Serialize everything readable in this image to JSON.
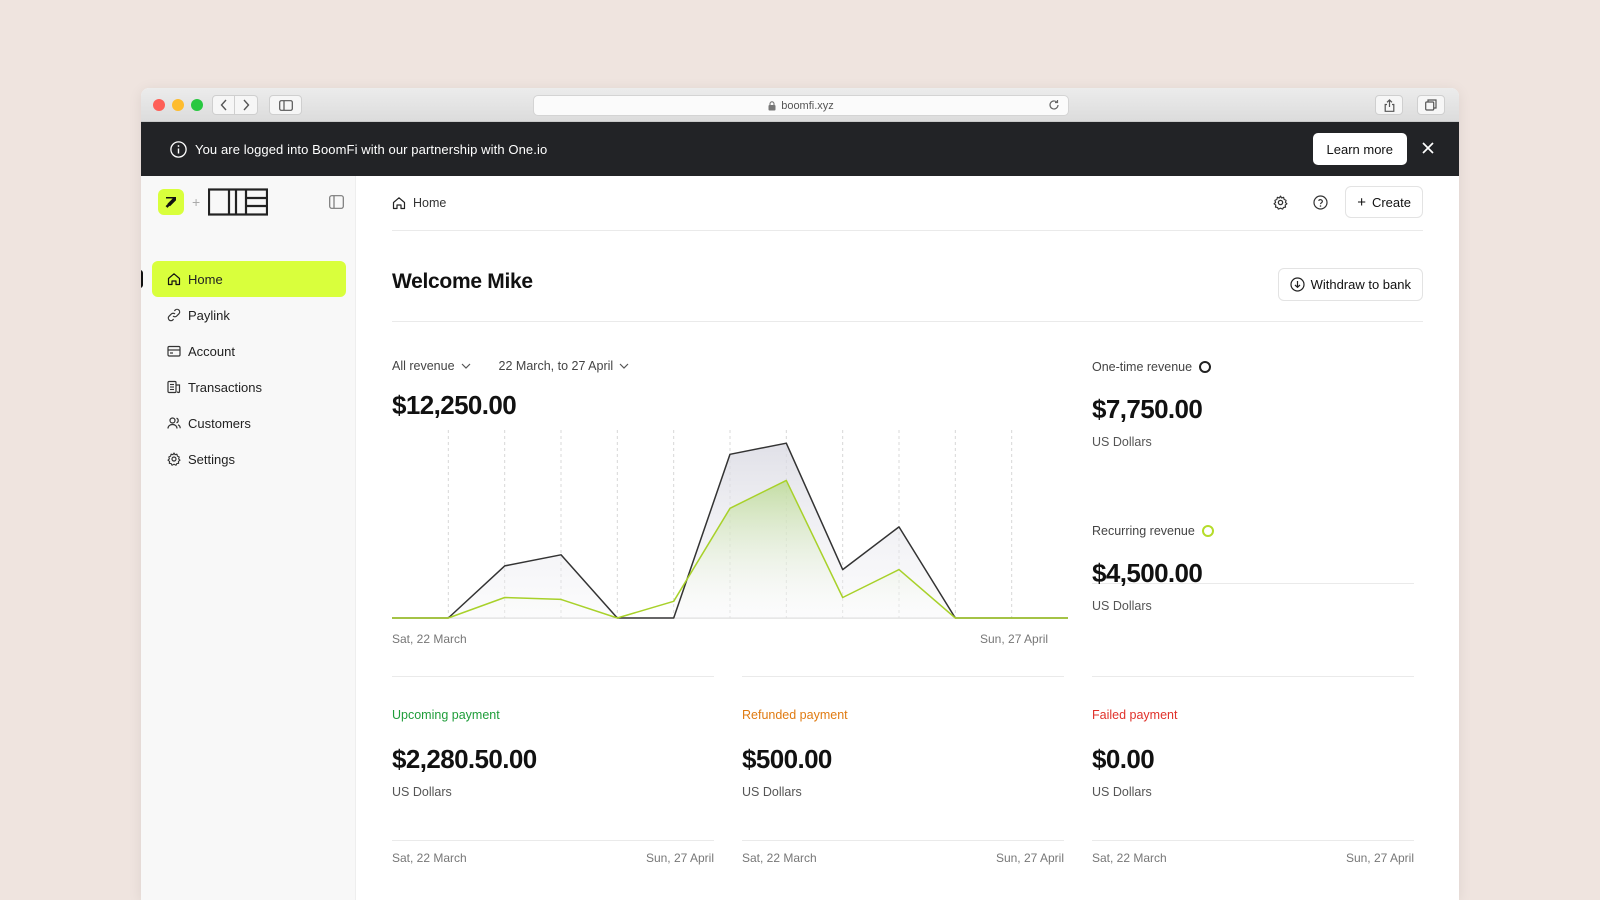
{
  "browser": {
    "url": "boomfi.xyz"
  },
  "banner": {
    "text": "You are logged into BoomFi with our partnership with One.io",
    "learn_more": "Learn more"
  },
  "sidebar": {
    "items": [
      {
        "label": "Home",
        "icon": "home-icon"
      },
      {
        "label": "Paylink",
        "icon": "link-icon"
      },
      {
        "label": "Account",
        "icon": "wallet-icon"
      },
      {
        "label": "Transactions",
        "icon": "transactions-icon"
      },
      {
        "label": "Customers",
        "icon": "users-icon"
      },
      {
        "label": "Settings",
        "icon": "gear-icon"
      }
    ]
  },
  "header": {
    "breadcrumb": "Home",
    "create_label": "Create"
  },
  "welcome": {
    "title": "Welcome Mike",
    "withdraw_label": "Withdraw to bank"
  },
  "filters": {
    "revenue": "All revenue",
    "date_range": "22 March, to 27 April"
  },
  "total_revenue": "$12,250.00",
  "chart_data": {
    "type": "area",
    "title": "",
    "x_start_label": "Sat, 22 March",
    "x_end_label": "Sun, 27 April",
    "colors": {
      "one_time": "#333333",
      "recurring": "#a8d12a"
    },
    "series": [
      {
        "name": "One-time revenue",
        "values": [
          0,
          0,
          28,
          34,
          0,
          0,
          88,
          94,
          26,
          49,
          0,
          0,
          0
        ]
      },
      {
        "name": "Recurring revenue",
        "values": [
          0,
          0,
          11,
          10,
          0,
          9,
          59,
          74,
          11,
          26,
          0,
          0,
          0
        ]
      }
    ],
    "x": [
      0,
      1,
      2,
      3,
      4,
      5,
      6,
      7,
      8,
      9,
      10,
      11,
      12
    ],
    "ylim": [
      0,
      100
    ],
    "grid": "vertical-dashed"
  },
  "revenue_breakdown": [
    {
      "label": "One-time revenue",
      "value": "$7,750.00",
      "unit": "US Dollars",
      "ring_color": "#222222"
    },
    {
      "label": "Recurring revenue",
      "value": "$4,500.00",
      "unit": "US Dollars",
      "ring_color": "#a8d12a"
    }
  ],
  "payments": [
    {
      "label": "Upcoming payment",
      "value": "$2,280.50.00",
      "unit": "US Dollars",
      "color": "#1f9d3a",
      "start": "Sat, 22 March",
      "end": "Sun, 27 April"
    },
    {
      "label": "Refunded payment",
      "value": "$500.00",
      "unit": "US Dollars",
      "color": "#e07b12",
      "start": "Sat, 22 March",
      "end": "Sun, 27 April"
    },
    {
      "label": "Failed payment",
      "value": "$0.00",
      "unit": "US Dollars",
      "color": "#e0322b",
      "start": "Sat, 22 March",
      "end": "Sun, 27 April"
    }
  ]
}
